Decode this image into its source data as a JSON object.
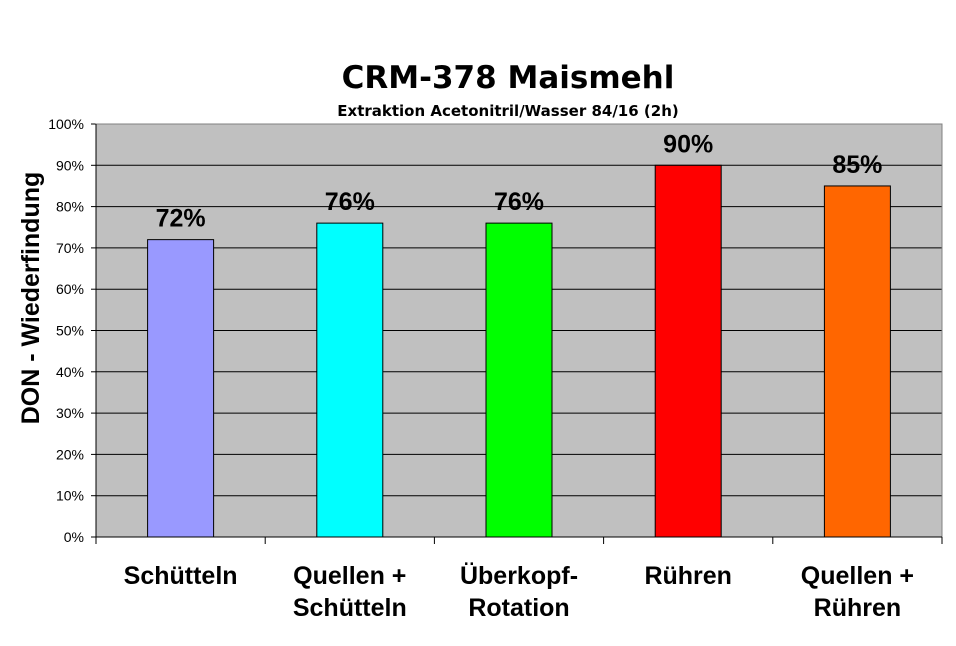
{
  "chart_data": {
    "type": "bar",
    "title": "CRM-378 Maismehl",
    "subtitle": "Extraktion  Acetonitril/Wasser 84/16  (2h)",
    "xlabel": "",
    "ylabel": "DON - Wiederfindung",
    "ylim": [
      0,
      100
    ],
    "yticks": [
      "0%",
      "10%",
      "20%",
      "30%",
      "40%",
      "50%",
      "60%",
      "70%",
      "80%",
      "90%",
      "100%"
    ],
    "grid": true,
    "plot_background": "#c0c0c0",
    "categories": [
      [
        "Schütteln"
      ],
      [
        "Quellen +",
        "Schütteln"
      ],
      [
        "Überkopf-",
        "Rotation"
      ],
      [
        "Rühren"
      ],
      [
        "Quellen +",
        "Rühren"
      ]
    ],
    "values": [
      72,
      76,
      76,
      90,
      85
    ],
    "data_labels": [
      "72%",
      "76%",
      "76%",
      "90%",
      "85%"
    ],
    "colors": [
      "#9999ff",
      "#00ffff",
      "#00ff00",
      "#ff0000",
      "#ff6600"
    ]
  }
}
